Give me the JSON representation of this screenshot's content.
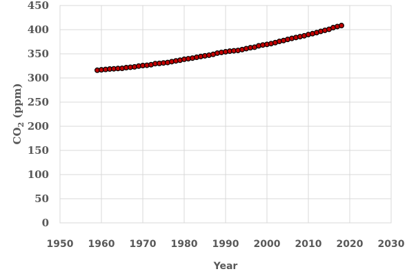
{
  "chart_data": {
    "type": "scatter",
    "title": "",
    "xlabel": "Year",
    "ylabel_main": "CO",
    "ylabel_sub": "2",
    "ylabel_unit": " (ppm)",
    "xlim": [
      1950,
      2030
    ],
    "ylim": [
      0,
      450
    ],
    "xticks": [
      1950,
      1960,
      1970,
      1980,
      1990,
      2000,
      2010,
      2020,
      2030
    ],
    "yticks": [
      0,
      50,
      100,
      150,
      200,
      250,
      300,
      350,
      400,
      450
    ],
    "grid": true,
    "marker_color": "#c00000",
    "marker_edge_color": "#000000",
    "x": [
      1959,
      1960,
      1961,
      1962,
      1963,
      1964,
      1965,
      1966,
      1967,
      1968,
      1969,
      1970,
      1971,
      1972,
      1973,
      1974,
      1975,
      1976,
      1977,
      1978,
      1979,
      1980,
      1981,
      1982,
      1983,
      1984,
      1985,
      1986,
      1987,
      1988,
      1989,
      1990,
      1991,
      1992,
      1993,
      1994,
      1995,
      1996,
      1997,
      1998,
      1999,
      2000,
      2001,
      2002,
      2003,
      2004,
      2005,
      2006,
      2007,
      2008,
      2009,
      2010,
      2011,
      2012,
      2013,
      2014,
      2015,
      2016,
      2017,
      2018
    ],
    "y": [
      316.0,
      316.9,
      317.6,
      318.5,
      319.0,
      319.6,
      320.0,
      321.4,
      322.2,
      323.0,
      324.6,
      325.7,
      326.3,
      327.5,
      329.7,
      330.2,
      331.1,
      332.0,
      333.8,
      335.4,
      336.8,
      338.7,
      339.9,
      341.1,
      342.8,
      344.4,
      345.9,
      347.2,
      348.9,
      351.5,
      352.9,
      354.2,
      355.5,
      356.3,
      357.0,
      358.8,
      360.8,
      362.6,
      363.7,
      366.6,
      368.3,
      369.5,
      371.1,
      373.2,
      375.8,
      377.5,
      379.8,
      381.9,
      383.8,
      385.6,
      387.4,
      389.9,
      391.7,
      393.9,
      396.5,
      398.6,
      400.8,
      404.2,
      406.5,
      408.5
    ]
  }
}
